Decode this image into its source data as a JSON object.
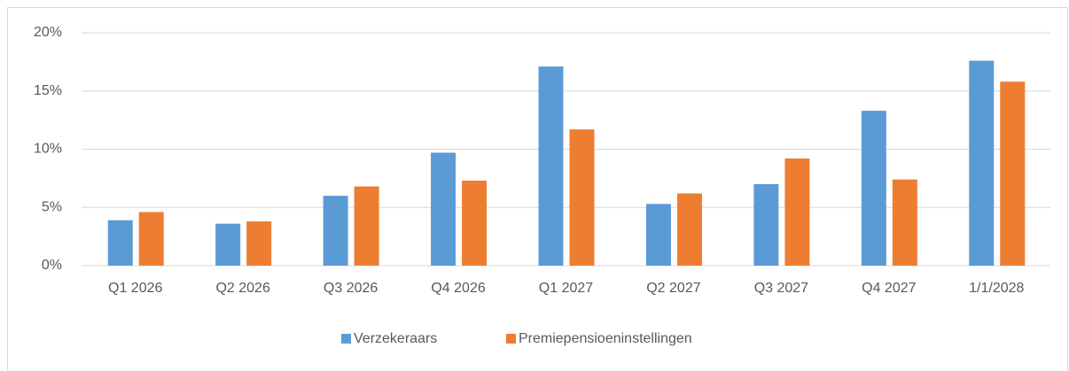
{
  "chart_data": {
    "type": "bar",
    "categories": [
      "Q1 2026",
      "Q2 2026",
      "Q3 2026",
      "Q4 2026",
      "Q1 2027",
      "Q2 2027",
      "Q3 2027",
      "Q4 2027",
      "1/1/2028"
    ],
    "series": [
      {
        "name": "Verzekeraars",
        "color": "#5b9bd5",
        "values": [
          3.9,
          3.6,
          6.0,
          9.7,
          17.1,
          5.3,
          7.0,
          13.3,
          17.6
        ]
      },
      {
        "name": "Premiepensioeninstellingen",
        "color": "#ed7d31",
        "values": [
          4.6,
          3.8,
          6.8,
          7.3,
          11.7,
          6.2,
          9.2,
          7.4,
          15.8
        ]
      }
    ],
    "ylim": [
      0,
      20
    ],
    "yticks": [
      {
        "value": 0,
        "label": "0%"
      },
      {
        "value": 5,
        "label": "5%"
      },
      {
        "value": 10,
        "label": "10%"
      },
      {
        "value": 15,
        "label": "15%"
      },
      {
        "value": 20,
        "label": "20%"
      }
    ],
    "grid": true,
    "legend": "bottom"
  }
}
